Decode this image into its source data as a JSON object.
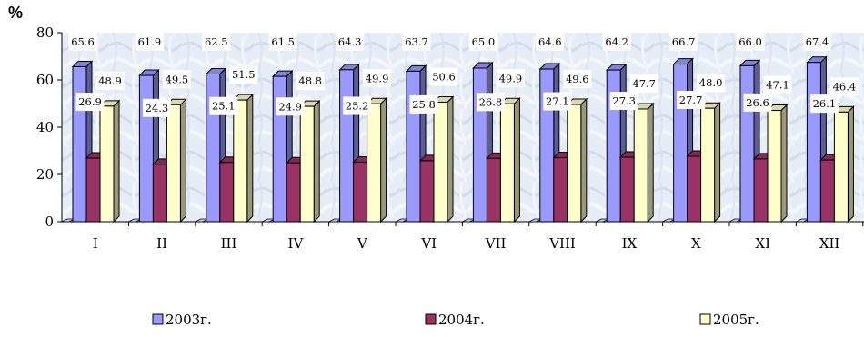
{
  "chart_data": {
    "type": "bar",
    "ylabel": "%",
    "ylim": [
      0,
      80
    ],
    "yticks": [
      "0",
      "20",
      "40",
      "60",
      "80"
    ],
    "categories": [
      "I",
      "II",
      "III",
      "IV",
      "V",
      "VI",
      "VII",
      "VIII",
      "IX",
      "X",
      "XI",
      "XII"
    ],
    "series": [
      {
        "name": "2003г.",
        "color": "#9999ff",
        "values": [
          65.6,
          61.9,
          62.5,
          61.5,
          64.3,
          63.7,
          65.0,
          64.6,
          64.2,
          66.7,
          66.0,
          67.4
        ],
        "labels": [
          "65.6",
          "61.9",
          "62.5",
          "61.5",
          "64.3",
          "63.7",
          "65.0",
          "64.6",
          "64.2",
          "66.7",
          "66.0",
          "67.4"
        ]
      },
      {
        "name": "2004г.",
        "color": "#993366",
        "values": [
          26.9,
          24.3,
          25.1,
          24.9,
          25.2,
          25.8,
          26.8,
          27.1,
          27.3,
          27.7,
          26.6,
          26.1
        ],
        "labels": [
          "26.9",
          "24.3",
          "25.1",
          "24.9",
          "25.2",
          "25.8",
          "26.8",
          "27.1",
          "27.3",
          "27.7",
          "26.6",
          "26.1"
        ]
      },
      {
        "name": "2005г.",
        "color": "#ffffcc",
        "values": [
          48.9,
          49.5,
          51.5,
          48.8,
          49.9,
          50.6,
          49.9,
          49.6,
          47.7,
          48.0,
          47.1,
          46.4
        ],
        "labels": [
          "48.9",
          "49.5",
          "51.5",
          "48.8",
          "49.9",
          "50.6",
          "49.9",
          "49.6",
          "47.7",
          "48.0",
          "47.1",
          "46.4"
        ]
      }
    ],
    "grid": false,
    "legend_position": "bottom"
  }
}
